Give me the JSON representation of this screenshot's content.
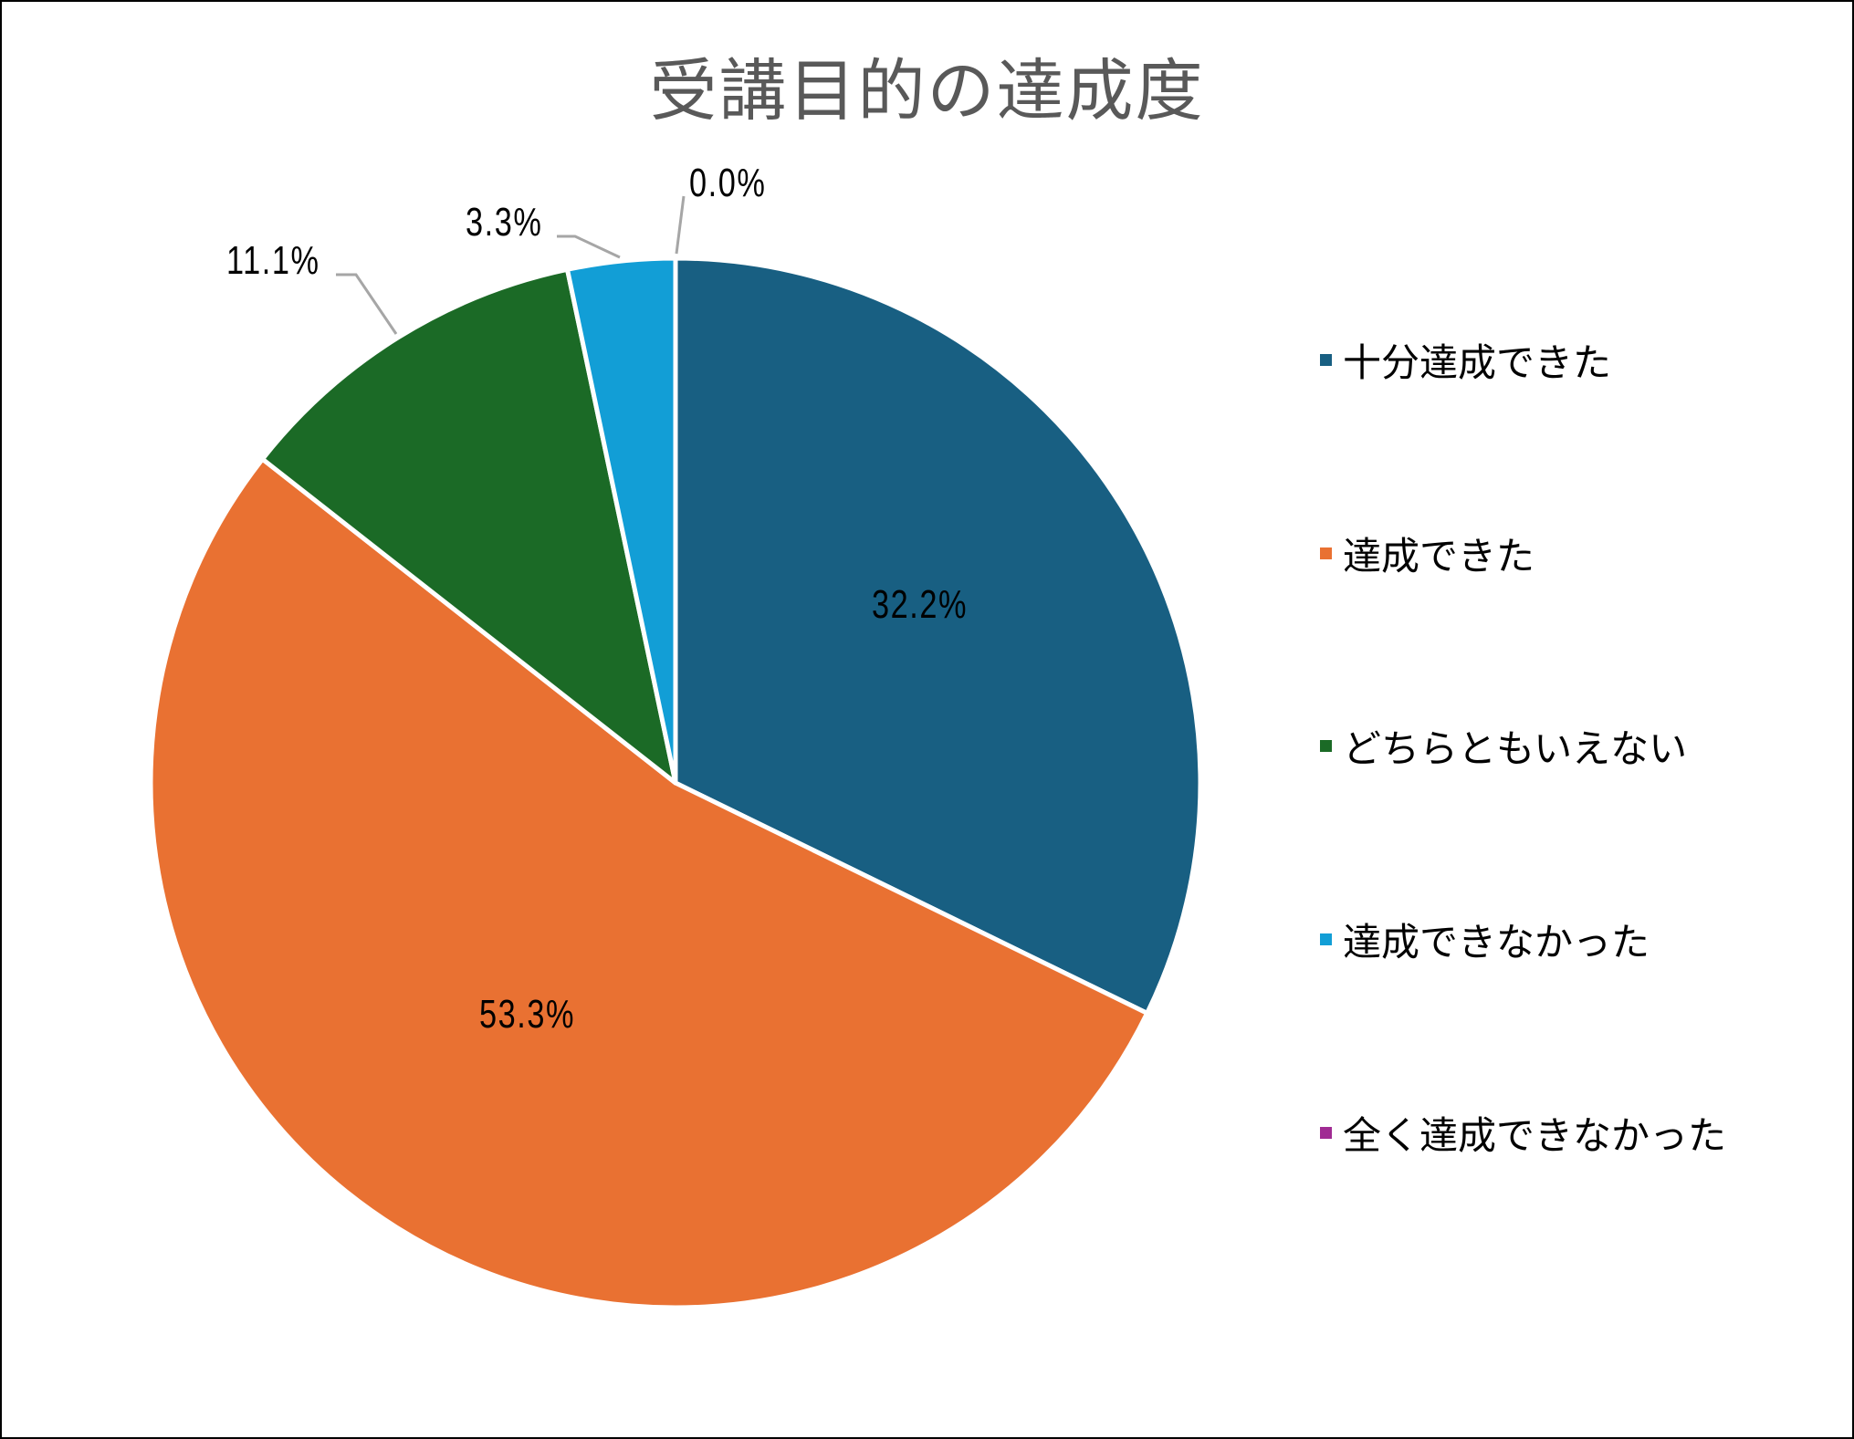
{
  "chart_data": {
    "type": "pie",
    "title": "受講目的の達成度",
    "categories": [
      "十分達成できた",
      "達成できた",
      "どちらともいえない",
      "達成できなかった",
      "全く達成できなかった"
    ],
    "values": [
      32.2,
      53.3,
      11.1,
      3.3,
      0.0
    ],
    "labels": [
      "32.2%",
      "53.3%",
      "11.1%",
      "3.3%",
      "0.0%"
    ],
    "colors": [
      "#185F82",
      "#E97132",
      "#1B6A26",
      "#129ED6",
      "#A02B93"
    ],
    "start_angle": "12 o'clock",
    "direction": "clockwise",
    "legend_position": "right"
  },
  "chart": {
    "title": "受講目的の達成度",
    "data_labels": {
      "s0": "32.2%",
      "s1": "53.3%",
      "s2": "11.1%",
      "s3": "3.3%",
      "s4": "0.0%"
    },
    "legend": [
      {
        "label": "十分達成できた",
        "color": "#185F82"
      },
      {
        "label": "達成できた",
        "color": "#E97132"
      },
      {
        "label": "どちらともいえない",
        "color": "#1B6A26"
      },
      {
        "label": "達成できなかった",
        "color": "#129ED6"
      },
      {
        "label": "全く達成できなかった",
        "color": "#A02B93"
      }
    ]
  }
}
